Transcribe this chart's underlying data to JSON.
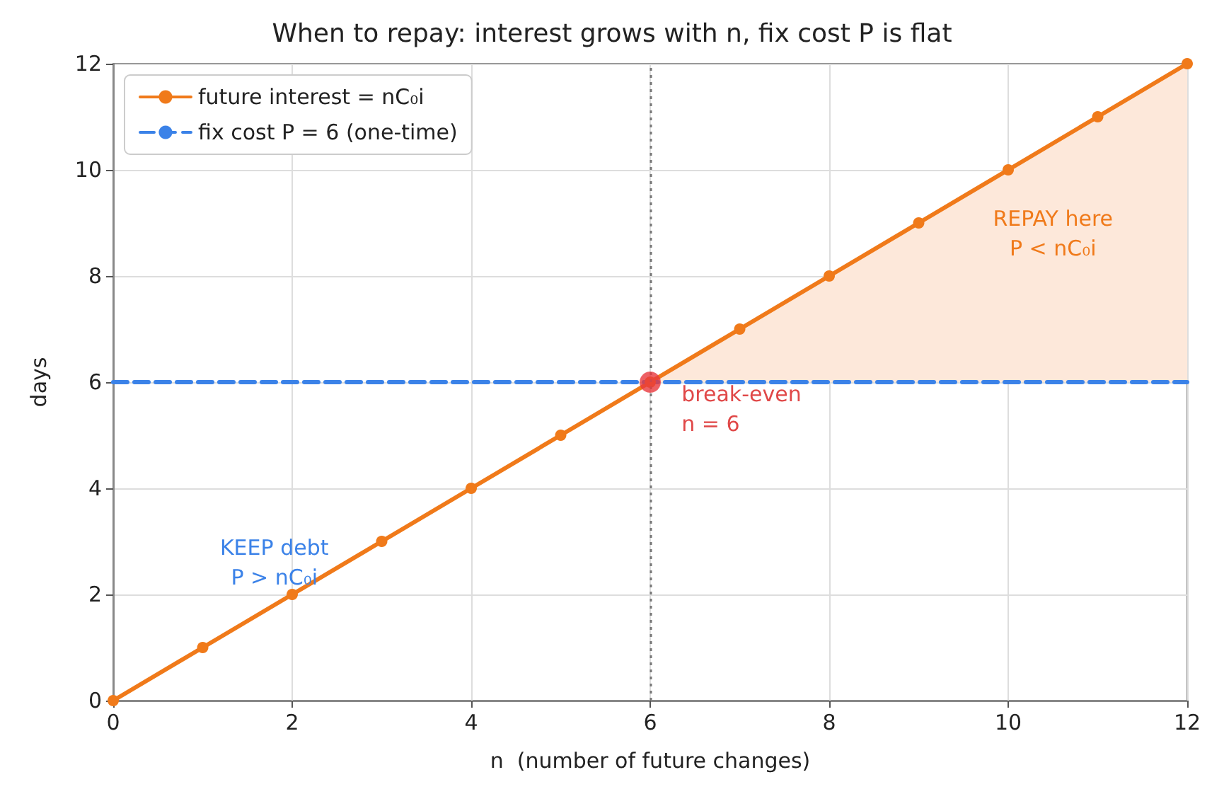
{
  "chart_data": {
    "type": "line",
    "title": "When to repay: interest grows with n, fix cost P is flat",
    "xlabel": "n  (number of future changes)",
    "ylabel": "days",
    "xlim": [
      0,
      12
    ],
    "ylim": [
      0,
      12
    ],
    "xticks": [
      0,
      2,
      4,
      6,
      8,
      10,
      12
    ],
    "yticks": [
      0,
      2,
      4,
      6,
      8,
      10,
      12
    ],
    "grid": true,
    "legend": "top left",
    "series": [
      {
        "type": "area",
        "color": "#fde8da",
        "x": [
          6,
          12
        ],
        "values": [
          6,
          12
        ]
      },
      {
        "name": "future interest = nC₀i",
        "color": "#f07a1a",
        "marker": "circle",
        "line_style": "solid",
        "x": [
          0,
          1,
          2,
          3,
          4,
          5,
          6,
          7,
          8,
          9,
          10,
          11,
          12
        ],
        "values": [
          0,
          1,
          2,
          3,
          4,
          5,
          6,
          7,
          8,
          9,
          10,
          11,
          12
        ]
      },
      {
        "name": "fix cost P = 6 (one-time)",
        "color": "#3b82e8",
        "marker": "none",
        "line_style": "dashed",
        "x": [
          0,
          12
        ],
        "values": [
          6,
          6
        ]
      },
      {
        "type": "scatter",
        "color": "#e8383d",
        "marker": "circle",
        "x": [
          6
        ],
        "values": [
          6
        ]
      }
    ],
    "ref_lines": [
      {
        "axis": "x",
        "value": 6,
        "color": "#777777",
        "line_style": "dotted"
      }
    ],
    "annotations": [
      "REPAY here\nP < nC₀i",
      "break-even\nn = 6",
      "KEEP debt\nP > nC₀i"
    ]
  }
}
